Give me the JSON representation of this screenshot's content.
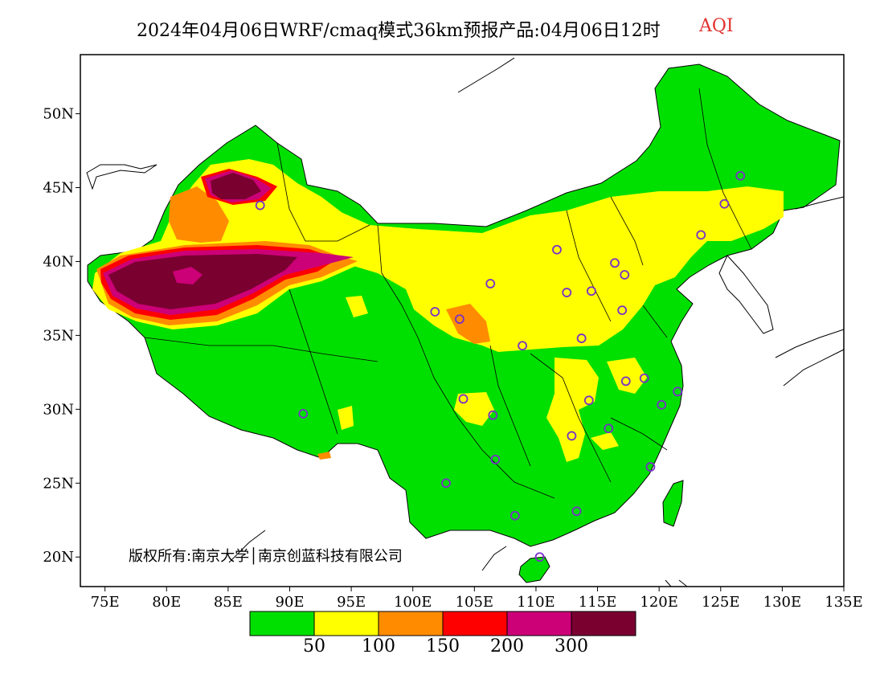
{
  "title": {
    "main": "2024年04月06日WRF/cmaq模式36km预报产品:04月06日12时",
    "variable": "AQI"
  },
  "axes": {
    "x_ticks": [
      "75E",
      "80E",
      "85E",
      "90E",
      "95E",
      "100E",
      "105E",
      "110E",
      "115E",
      "120E",
      "125E",
      "130E",
      "135E"
    ],
    "y_ticks": [
      "50N",
      "45N",
      "40N",
      "35N",
      "30N",
      "25N",
      "20N"
    ]
  },
  "copyright": "版权所有:南京大学│南京创蓝科技有限公司",
  "legend": {
    "colors": [
      "#00e000",
      "#ffff00",
      "#ff8c00",
      "#ff0000",
      "#cc0077",
      "#7a0030"
    ],
    "labels": [
      "50",
      "100",
      "150",
      "200",
      "300"
    ]
  },
  "map": {
    "background": "#ffffff",
    "extent": {
      "lon": [
        73,
        135
      ],
      "lat": [
        18,
        54
      ]
    },
    "station_marker_color": "#7a30c8",
    "stations": [
      {
        "lon": 126.6,
        "lat": 45.8
      },
      {
        "lon": 125.3,
        "lat": 43.9
      },
      {
        "lon": 123.4,
        "lat": 41.8
      },
      {
        "lon": 87.6,
        "lat": 43.8
      },
      {
        "lon": 111.7,
        "lat": 40.8
      },
      {
        "lon": 116.4,
        "lat": 39.9
      },
      {
        "lon": 117.2,
        "lat": 39.1
      },
      {
        "lon": 114.5,
        "lat": 38.0
      },
      {
        "lon": 112.5,
        "lat": 37.9
      },
      {
        "lon": 106.3,
        "lat": 38.5
      },
      {
        "lon": 117.0,
        "lat": 36.7
      },
      {
        "lon": 101.8,
        "lat": 36.6
      },
      {
        "lon": 103.8,
        "lat": 36.1
      },
      {
        "lon": 108.9,
        "lat": 34.3
      },
      {
        "lon": 113.7,
        "lat": 34.8
      },
      {
        "lon": 117.3,
        "lat": 31.9
      },
      {
        "lon": 118.8,
        "lat": 32.1
      },
      {
        "lon": 121.5,
        "lat": 31.2
      },
      {
        "lon": 120.2,
        "lat": 30.3
      },
      {
        "lon": 114.3,
        "lat": 30.6
      },
      {
        "lon": 104.1,
        "lat": 30.7
      },
      {
        "lon": 106.5,
        "lat": 29.6
      },
      {
        "lon": 91.1,
        "lat": 29.7
      },
      {
        "lon": 112.9,
        "lat": 28.2
      },
      {
        "lon": 115.9,
        "lat": 28.7
      },
      {
        "lon": 106.7,
        "lat": 26.6
      },
      {
        "lon": 119.3,
        "lat": 26.1
      },
      {
        "lon": 102.7,
        "lat": 25.0
      },
      {
        "lon": 108.3,
        "lat": 22.8
      },
      {
        "lon": 113.3,
        "lat": 23.1
      },
      {
        "lon": 110.3,
        "lat": 20.0
      }
    ]
  }
}
